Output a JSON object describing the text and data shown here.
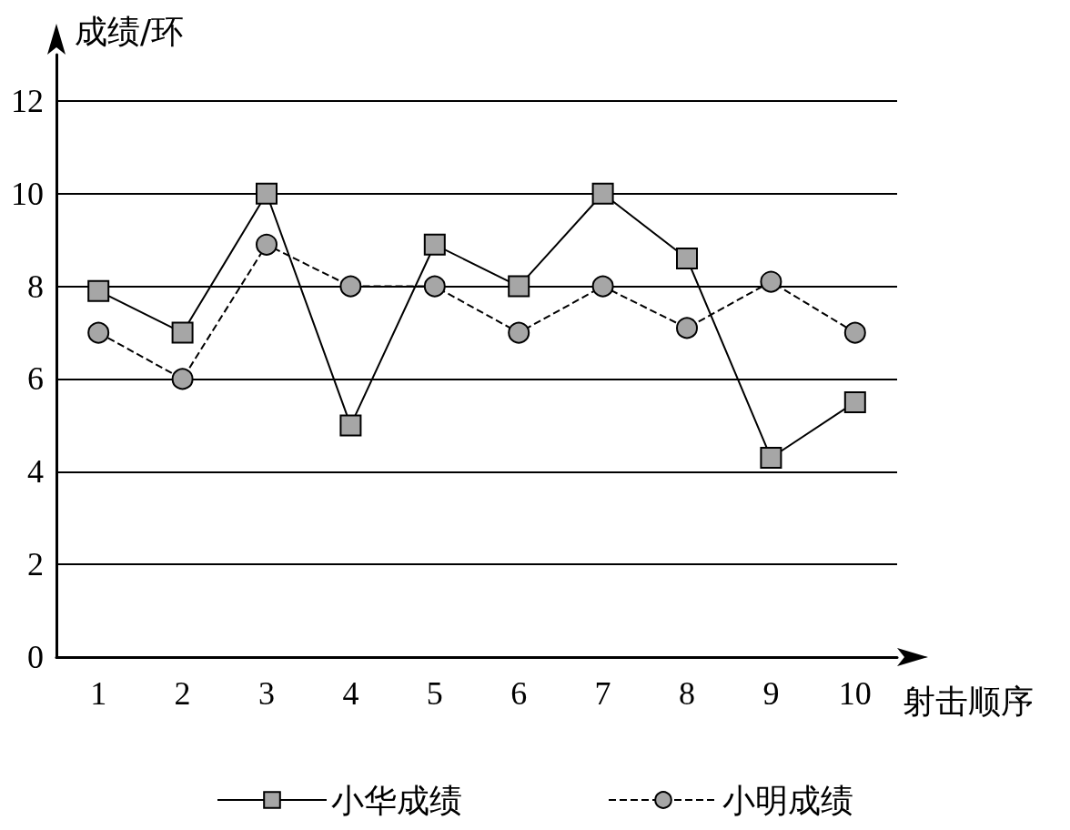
{
  "chart_data": {
    "type": "line",
    "xlabel": "射击顺序",
    "ylabel": "成绩/环",
    "categories": [
      "1",
      "2",
      "3",
      "4",
      "5",
      "6",
      "7",
      "8",
      "9",
      "10"
    ],
    "series": [
      {
        "name": "小华成绩",
        "color": "#000000",
        "marker": "square",
        "line_style": "solid",
        "values": [
          7.9,
          7,
          10,
          5,
          8.9,
          8,
          10,
          8.6,
          4.3,
          5.5
        ]
      },
      {
        "name": "小明成绩",
        "color": "#000000",
        "marker": "circle",
        "line_style": "dashed",
        "values": [
          7,
          6,
          8.9,
          8,
          8,
          7,
          8,
          7.1,
          8.1,
          7
        ]
      }
    ],
    "ylim": [
      0,
      13
    ],
    "yticks": [
      0,
      2,
      4,
      6,
      8,
      10,
      12
    ],
    "grid": "y",
    "legend": "bottom"
  }
}
